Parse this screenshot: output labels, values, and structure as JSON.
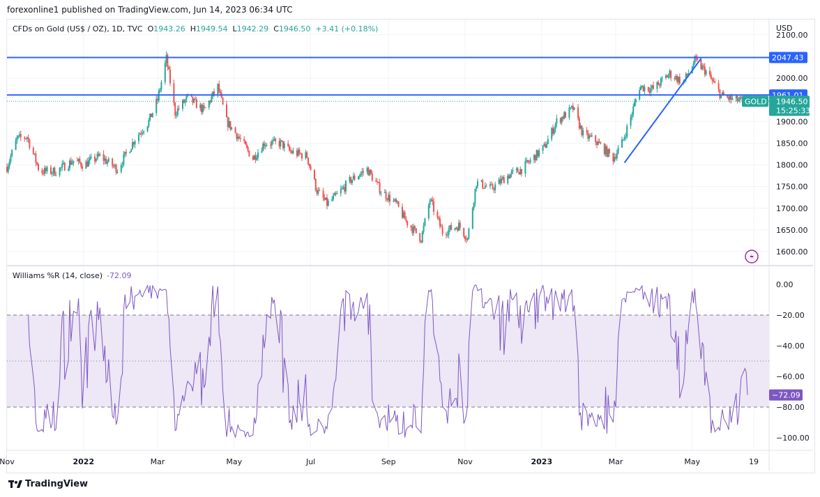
{
  "header": {
    "published": "forexonline1 published on TradingView.com, Jun 14, 2023 06:34 UTC"
  },
  "legend": {
    "symbol": "CFDs on Gold (US$ / OZ), 1D, TVC",
    "o_label": "O",
    "o": "1943.26",
    "h_label": "H",
    "h": "1949.54",
    "l_label": "L",
    "l": "1942.29",
    "c_label": "C",
    "c": "1946.50",
    "change": "+3.41 (+0.18%)"
  },
  "indicator": {
    "name": "Williams %R (14, close)",
    "value": "-72.09"
  },
  "footer": {
    "brand": "TradingView"
  },
  "colors": {
    "up": "#26a69a",
    "down": "#ef5350",
    "line": "#2962ff",
    "indicator": "#7e57c2",
    "band": "#ede7f6"
  },
  "chart_data": [
    {
      "type": "candlestick",
      "title": "CFDs on Gold (US$ / OZ), 1D, TVC",
      "currency": "USD",
      "ylim": [
        1580,
        2110
      ],
      "yticks": [
        "1600.00",
        "1650.00",
        "1700.00",
        "1750.00",
        "1800.00",
        "1850.00",
        "1900.00",
        "2000.00",
        "2100.00"
      ],
      "xticks": [
        {
          "label": "Nov",
          "date": "2021-11-01"
        },
        {
          "label": "2022",
          "date": "2022-01-01"
        },
        {
          "label": "Mar",
          "date": "2022-03-01"
        },
        {
          "label": "May",
          "date": "2022-05-01"
        },
        {
          "label": "Jul",
          "date": "2022-07-01"
        },
        {
          "label": "Sep",
          "date": "2022-09-01"
        },
        {
          "label": "Nov",
          "date": "2022-11-01"
        },
        {
          "label": "2023",
          "date": "2023-01-01"
        },
        {
          "label": "Mar",
          "date": "2023-03-01"
        },
        {
          "label": "May",
          "date": "2023-05-01"
        },
        {
          "label": "19",
          "date": "2023-06-19"
        }
      ],
      "grid": true,
      "approx_close": [
        [
          "2021-11-01",
          1795
        ],
        [
          "2021-11-09",
          1860
        ],
        [
          "2021-11-17",
          1865
        ],
        [
          "2021-11-27",
          1785
        ],
        [
          "2021-12-10",
          1785
        ],
        [
          "2021-12-24",
          1810
        ],
        [
          "2022-01-01",
          1800
        ],
        [
          "2022-01-14",
          1820
        ],
        [
          "2022-01-28",
          1790
        ],
        [
          "2022-02-11",
          1860
        ],
        [
          "2022-02-22",
          1900
        ],
        [
          "2022-03-01",
          1950
        ],
        [
          "2022-03-08",
          2045
        ],
        [
          "2022-03-15",
          1920
        ],
        [
          "2022-03-25",
          1955
        ],
        [
          "2022-04-07",
          1925
        ],
        [
          "2022-04-18",
          1980
        ],
        [
          "2022-04-25",
          1900
        ],
        [
          "2022-05-03",
          1870
        ],
        [
          "2022-05-16",
          1815
        ],
        [
          "2022-05-25",
          1850
        ],
        [
          "2022-06-07",
          1850
        ],
        [
          "2022-06-15",
          1830
        ],
        [
          "2022-06-28",
          1820
        ],
        [
          "2022-07-06",
          1740
        ],
        [
          "2022-07-14",
          1710
        ],
        [
          "2022-07-22",
          1730
        ],
        [
          "2022-08-02",
          1765
        ],
        [
          "2022-08-15",
          1790
        ],
        [
          "2022-08-26",
          1740
        ],
        [
          "2022-09-07",
          1710
        ],
        [
          "2022-09-15",
          1670
        ],
        [
          "2022-09-27",
          1630
        ],
        [
          "2022-10-04",
          1720
        ],
        [
          "2022-10-14",
          1645
        ],
        [
          "2022-10-27",
          1660
        ],
        [
          "2022-11-03",
          1630
        ],
        [
          "2022-11-10",
          1760
        ],
        [
          "2022-11-22",
          1745
        ],
        [
          "2022-12-05",
          1775
        ],
        [
          "2022-12-16",
          1790
        ],
        [
          "2023-01-03",
          1840
        ],
        [
          "2023-01-13",
          1900
        ],
        [
          "2023-01-26",
          1930
        ],
        [
          "2023-02-03",
          1870
        ],
        [
          "2023-02-13",
          1855
        ],
        [
          "2023-02-27",
          1815
        ],
        [
          "2023-03-06",
          1850
        ],
        [
          "2023-03-13",
          1910
        ],
        [
          "2023-03-20",
          1980
        ],
        [
          "2023-03-31",
          1975
        ],
        [
          "2023-04-13",
          2010
        ],
        [
          "2023-04-24",
          1990
        ],
        [
          "2023-05-03",
          2040
        ],
        [
          "2023-05-12",
          2015
        ],
        [
          "2023-05-24",
          1960
        ],
        [
          "2023-06-02",
          1950
        ],
        [
          "2023-06-14",
          1946.5
        ]
      ],
      "horizontal_lines": [
        {
          "price": 2047.43,
          "label": "2047.43"
        },
        {
          "price": 1961.01,
          "label": "1961.01"
        }
      ],
      "trendline": [
        [
          "2023-03-08",
          1805
        ],
        [
          "2023-05-08",
          2045
        ]
      ],
      "last_price": {
        "label": "1946.50",
        "countdown": "15:25:33",
        "tag": "GOLD",
        "price": 1946.5
      }
    },
    {
      "type": "line",
      "title": "Williams %R (14, close)",
      "ylim": [
        -100,
        0
      ],
      "yticks": [
        "0.00",
        "-20.00",
        "-40.00",
        "-60.00",
        "-80.00",
        "-100.00"
      ],
      "levels": [
        -20,
        -50,
        -80
      ],
      "band": [
        -80,
        -20
      ],
      "last_value": "-72.09"
    }
  ]
}
